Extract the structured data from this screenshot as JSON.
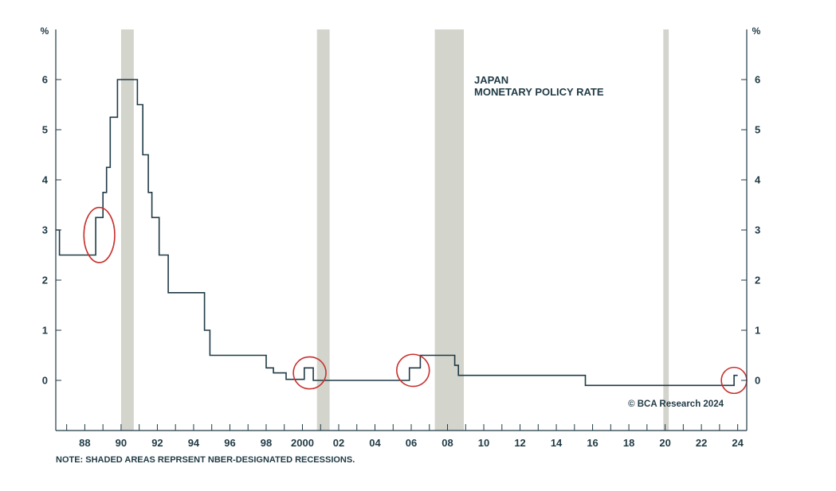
{
  "chart_data": {
    "type": "line",
    "title_lines": [
      "JAPAN",
      "MONETARY POLICY RATE"
    ],
    "y_unit_left": "%",
    "y_unit_right": "%",
    "credit": "© BCA Research 2024",
    "note": "NOTE: SHADED AREAS REPRSENT NBER-DESIGNATED RECESSIONS.",
    "xlim": [
      1986.4,
      2024.5
    ],
    "ylim": [
      -1,
      7
    ],
    "y_ticks": [
      0,
      1,
      2,
      3,
      4,
      5,
      6
    ],
    "y_tick_labels": [
      "0",
      "1",
      "2",
      "3",
      "4",
      "5",
      "6"
    ],
    "x_labeled_ticks": [
      1988,
      1990,
      1992,
      1994,
      1996,
      1998,
      2000,
      2002,
      2004,
      2006,
      2008,
      2010,
      2012,
      2014,
      2016,
      2018,
      2020,
      2022,
      2024
    ],
    "x_tick_labels": [
      "88",
      "90",
      "92",
      "94",
      "96",
      "98",
      "2000",
      "02",
      "04",
      "06",
      "08",
      "10",
      "12",
      "14",
      "16",
      "18",
      "20",
      "22",
      "24"
    ],
    "x_minor_ticks": [
      1987,
      1989,
      1991,
      1993,
      1995,
      1997,
      1999,
      2001,
      2003,
      2005,
      2007,
      2009,
      2011,
      2013,
      2015,
      2017,
      2019,
      2021,
      2023
    ],
    "grid": false,
    "recessions": [
      {
        "start": 1990.0,
        "end": 1990.7
      },
      {
        "start": 2000.8,
        "end": 2001.5
      },
      {
        "start": 2007.3,
        "end": 2008.9
      },
      {
        "start": 2019.9,
        "end": 2020.2
      }
    ],
    "series": [
      {
        "color": "#1f3a45",
        "points": [
          [
            1986.4,
            3.0
          ],
          [
            1986.6,
            3.0
          ],
          [
            1986.6,
            2.5
          ],
          [
            1988.6,
            2.5
          ],
          [
            1988.6,
            3.25
          ],
          [
            1989.0,
            3.25
          ],
          [
            1989.0,
            3.75
          ],
          [
            1989.2,
            3.75
          ],
          [
            1989.2,
            4.25
          ],
          [
            1989.4,
            4.25
          ],
          [
            1989.4,
            5.25
          ],
          [
            1989.8,
            5.25
          ],
          [
            1989.8,
            6.0
          ],
          [
            1990.9,
            6.0
          ],
          [
            1990.9,
            5.5
          ],
          [
            1991.2,
            5.5
          ],
          [
            1991.2,
            4.5
          ],
          [
            1991.5,
            4.5
          ],
          [
            1991.5,
            3.75
          ],
          [
            1991.7,
            3.75
          ],
          [
            1991.7,
            3.25
          ],
          [
            1992.1,
            3.25
          ],
          [
            1992.1,
            2.5
          ],
          [
            1992.6,
            2.5
          ],
          [
            1992.6,
            1.75
          ],
          [
            1994.6,
            1.75
          ],
          [
            1994.6,
            1.0
          ],
          [
            1994.9,
            1.0
          ],
          [
            1994.9,
            0.5
          ],
          [
            1998.0,
            0.5
          ],
          [
            1998.0,
            0.25
          ],
          [
            1998.4,
            0.25
          ],
          [
            1998.4,
            0.15
          ],
          [
            1999.1,
            0.15
          ],
          [
            1999.1,
            0.02
          ],
          [
            2000.1,
            0.02
          ],
          [
            2000.1,
            0.25
          ],
          [
            2000.6,
            0.25
          ],
          [
            2000.6,
            0.0
          ],
          [
            2005.9,
            0.0
          ],
          [
            2005.9,
            0.25
          ],
          [
            2006.5,
            0.25
          ],
          [
            2006.5,
            0.5
          ],
          [
            2008.4,
            0.5
          ],
          [
            2008.4,
            0.3
          ],
          [
            2008.6,
            0.3
          ],
          [
            2008.6,
            0.1
          ],
          [
            2015.6,
            0.1
          ],
          [
            2015.6,
            -0.1
          ],
          [
            2023.8,
            -0.1
          ],
          [
            2023.8,
            0.1
          ],
          [
            2024.0,
            0.1
          ]
        ]
      }
    ],
    "highlight_circles": [
      {
        "x": 1988.8,
        "y": 2.9,
        "rx_years": 0.85,
        "ry_units": 0.55
      },
      {
        "x": 2000.4,
        "y": 0.15,
        "rx_years": 0.9,
        "ry_units": 0.32
      },
      {
        "x": 2006.1,
        "y": 0.2,
        "rx_years": 0.9,
        "ry_units": 0.32
      },
      {
        "x": 2023.8,
        "y": 0.0,
        "rx_years": 0.7,
        "ry_units": 0.26
      }
    ],
    "colors": {
      "line": "#1f3a45",
      "axis": "#1f3a45",
      "recession_shade": "#d3d4cc",
      "circle": "#c8312e"
    }
  }
}
